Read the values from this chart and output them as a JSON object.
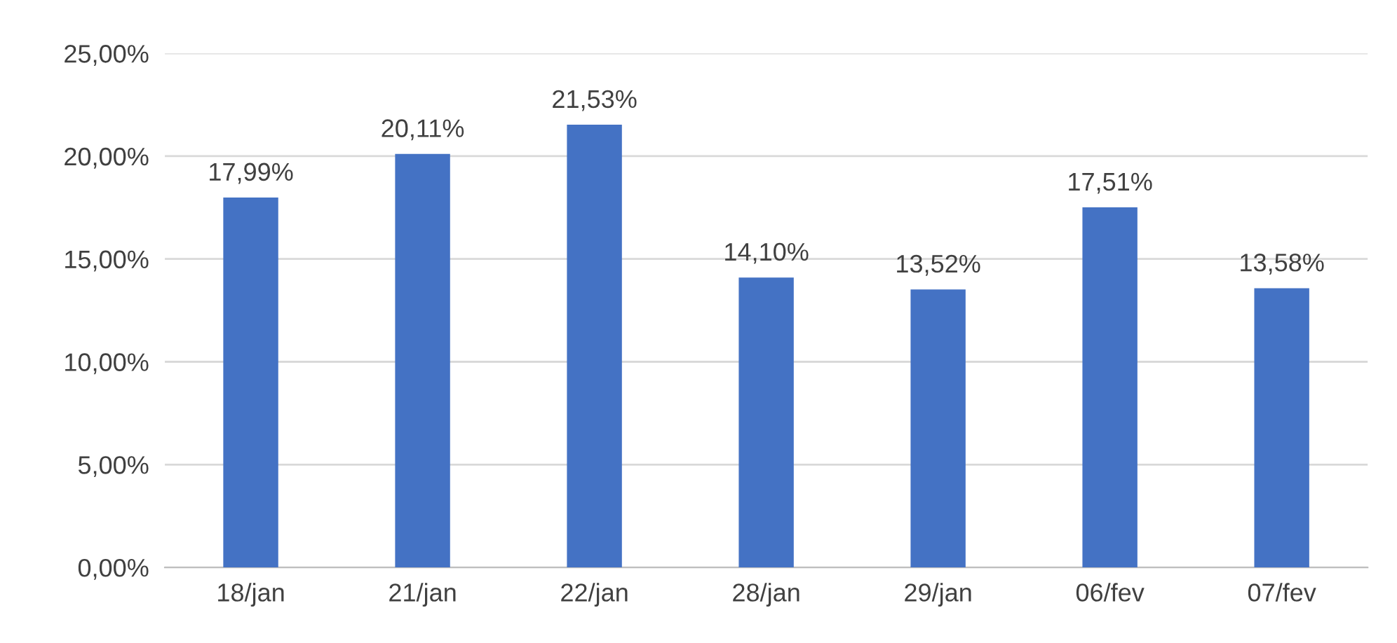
{
  "chart_data": {
    "type": "bar",
    "categories": [
      "18/jan",
      "21/jan",
      "22/jan",
      "28/jan",
      "29/jan",
      "06/fev",
      "07/fev"
    ],
    "values": [
      17.99,
      20.11,
      21.53,
      14.1,
      13.52,
      17.51,
      13.58
    ],
    "value_labels": [
      "17,99%",
      "20,11%",
      "21,53%",
      "14,10%",
      "13,52%",
      "17,51%",
      "13,58%"
    ],
    "color": "#4472c4",
    "ylim": [
      0,
      25
    ],
    "yticks": [
      {
        "value": 0,
        "label": "0,00%"
      },
      {
        "value": 5,
        "label": "5,00%"
      },
      {
        "value": 10,
        "label": "10,00%"
      },
      {
        "value": 15,
        "label": "15,00%"
      },
      {
        "value": 20,
        "label": "20,00%"
      },
      {
        "value": 25,
        "label": "25,00%"
      }
    ],
    "grid": "y",
    "legend": false
  }
}
